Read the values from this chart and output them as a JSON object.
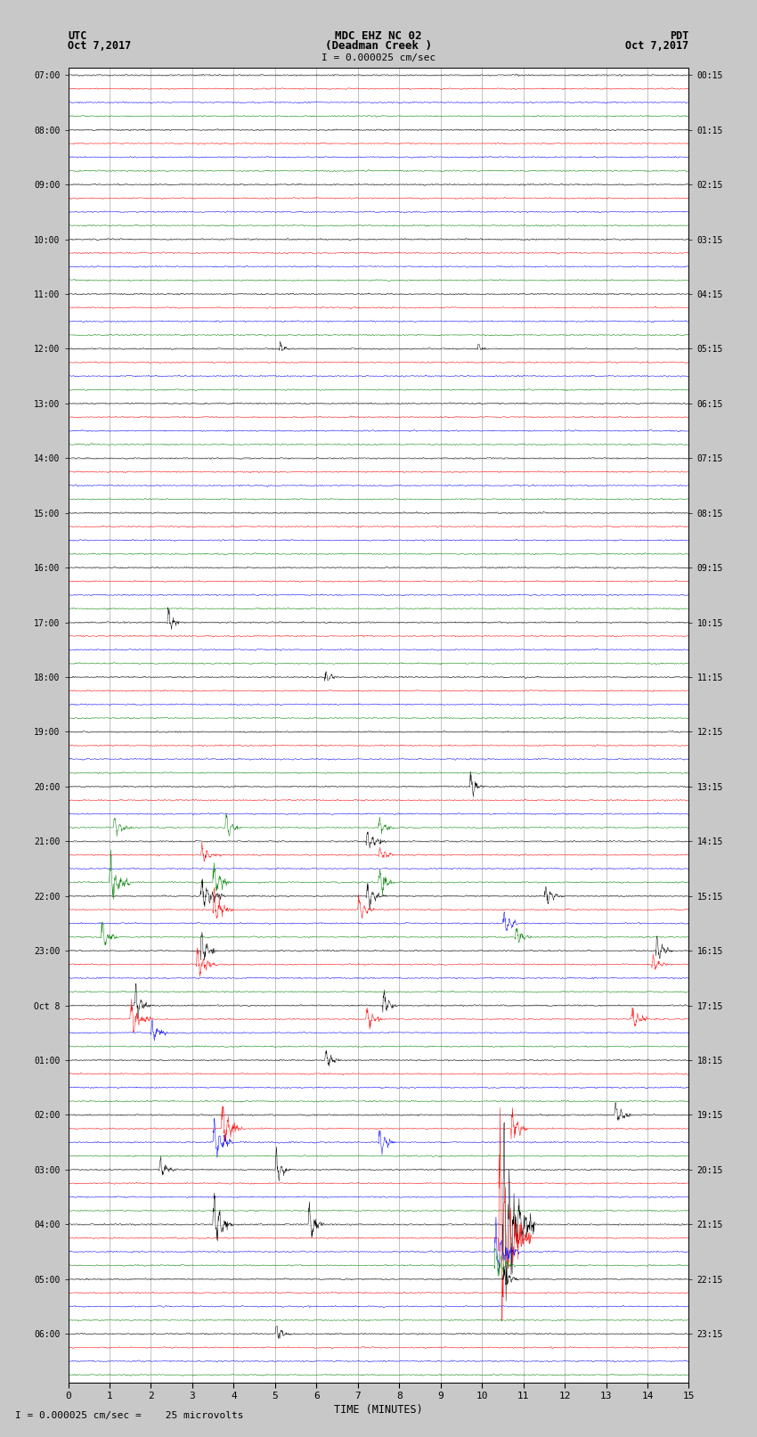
{
  "title_line1": "MDC EHZ NC 02",
  "title_line2": "(Deadman Creek )",
  "title_line3": "I = 0.000025 cm/sec",
  "left_header_line1": "UTC",
  "left_header_line2": "Oct 7,2017",
  "right_header_line1": "PDT",
  "right_header_line2": "Oct 7,2017",
  "xlabel": "TIME (MINUTES)",
  "footer": "I = 0.000025 cm/sec =    25 microvolts",
  "time_minutes": 15,
  "colors": [
    "black",
    "red",
    "blue",
    "green"
  ],
  "background_color": "#c8c8c8",
  "plot_bg": "#ffffff",
  "noise_amplitude": 0.04,
  "num_rows": 96,
  "figwidth": 8.5,
  "figheight": 16.13,
  "utc_labels": [
    "07:00",
    "",
    "",
    "",
    "08:00",
    "",
    "",
    "",
    "09:00",
    "",
    "",
    "",
    "10:00",
    "",
    "",
    "",
    "11:00",
    "",
    "",
    "",
    "12:00",
    "",
    "",
    "",
    "13:00",
    "",
    "",
    "",
    "14:00",
    "",
    "",
    "",
    "15:00",
    "",
    "",
    "",
    "16:00",
    "",
    "",
    "",
    "17:00",
    "",
    "",
    "",
    "18:00",
    "",
    "",
    "",
    "19:00",
    "",
    "",
    "",
    "20:00",
    "",
    "",
    "",
    "21:00",
    "",
    "",
    "",
    "22:00",
    "",
    "",
    "",
    "23:00",
    "",
    "",
    "",
    "Oct 8",
    "",
    "",
    "",
    "01:00",
    "",
    "",
    "",
    "02:00",
    "",
    "",
    "",
    "03:00",
    "",
    "",
    "",
    "04:00",
    "",
    "",
    "",
    "05:00",
    "",
    "",
    "",
    "06:00",
    "",
    "",
    ""
  ],
  "pdt_labels": [
    "00:15",
    "",
    "",
    "",
    "01:15",
    "",
    "",
    "",
    "02:15",
    "",
    "",
    "",
    "03:15",
    "",
    "",
    "",
    "04:15",
    "",
    "",
    "",
    "05:15",
    "",
    "",
    "",
    "06:15",
    "",
    "",
    "",
    "07:15",
    "",
    "",
    "",
    "08:15",
    "",
    "",
    "",
    "09:15",
    "",
    "",
    "",
    "10:15",
    "",
    "",
    "",
    "11:15",
    "",
    "",
    "",
    "12:15",
    "",
    "",
    "",
    "13:15",
    "",
    "",
    "",
    "14:15",
    "",
    "",
    "",
    "15:15",
    "",
    "",
    "",
    "16:15",
    "",
    "",
    "",
    "17:15",
    "",
    "",
    "",
    "18:15",
    "",
    "",
    "",
    "19:15",
    "",
    "",
    "",
    "20:15",
    "",
    "",
    "",
    "21:15",
    "",
    "",
    "",
    "22:15",
    "",
    "",
    "",
    "23:15",
    "",
    "",
    ""
  ],
  "x_ticks": [
    0,
    1,
    2,
    3,
    4,
    5,
    6,
    7,
    8,
    9,
    10,
    11,
    12,
    13,
    14,
    15
  ],
  "special_events": [
    [
      20,
      5.1,
      0.6,
      0.25,
      0
    ],
    [
      20,
      9.9,
      0.5,
      0.2,
      0
    ],
    [
      40,
      2.4,
      1.5,
      0.3,
      0
    ],
    [
      44,
      6.2,
      0.5,
      0.4,
      3
    ],
    [
      52,
      9.7,
      1.0,
      0.35,
      1
    ],
    [
      55,
      1.1,
      0.8,
      0.5,
      2
    ],
    [
      55,
      3.8,
      1.0,
      0.4,
      2
    ],
    [
      55,
      7.5,
      0.7,
      0.4,
      2
    ],
    [
      56,
      7.2,
      0.8,
      0.5,
      3
    ],
    [
      57,
      3.2,
      0.9,
      0.5,
      1
    ],
    [
      57,
      7.5,
      0.7,
      0.4,
      1
    ],
    [
      59,
      1.0,
      1.8,
      0.5,
      3
    ],
    [
      59,
      3.5,
      1.5,
      0.4,
      3
    ],
    [
      59,
      7.5,
      1.3,
      0.4,
      3
    ],
    [
      60,
      3.2,
      1.4,
      0.6,
      1
    ],
    [
      60,
      7.2,
      1.0,
      0.5,
      1
    ],
    [
      60,
      11.5,
      0.8,
      0.5,
      1
    ],
    [
      61,
      3.5,
      1.2,
      0.5,
      2
    ],
    [
      61,
      7.0,
      1.0,
      0.4,
      2
    ],
    [
      62,
      10.5,
      1.0,
      0.4,
      0
    ],
    [
      63,
      0.8,
      1.2,
      0.4,
      1
    ],
    [
      63,
      10.8,
      0.8,
      0.4,
      1
    ],
    [
      64,
      3.2,
      1.5,
      0.4,
      0
    ],
    [
      64,
      14.2,
      1.2,
      0.4,
      0
    ],
    [
      65,
      3.1,
      1.0,
      0.5,
      2
    ],
    [
      65,
      14.1,
      0.8,
      0.4,
      2
    ],
    [
      68,
      1.6,
      1.5,
      0.4,
      0
    ],
    [
      68,
      7.6,
      1.0,
      0.35,
      0
    ],
    [
      69,
      1.5,
      1.5,
      0.5,
      1
    ],
    [
      69,
      7.2,
      1.0,
      0.4,
      1
    ],
    [
      69,
      13.6,
      1.2,
      0.4,
      1
    ],
    [
      70,
      2.0,
      1.0,
      0.4,
      0
    ],
    [
      72,
      6.2,
      0.8,
      0.4,
      2
    ],
    [
      76,
      13.2,
      1.2,
      0.4,
      0
    ],
    [
      77,
      3.7,
      2.0,
      0.5,
      2
    ],
    [
      77,
      10.7,
      1.5,
      0.4,
      2
    ],
    [
      78,
      3.5,
      1.8,
      0.5,
      1
    ],
    [
      78,
      7.5,
      1.2,
      0.4,
      0
    ],
    [
      80,
      2.2,
      1.0,
      0.4,
      3
    ],
    [
      80,
      5.0,
      1.2,
      0.4,
      3
    ],
    [
      84,
      3.5,
      1.8,
      0.5,
      2
    ],
    [
      84,
      5.8,
      1.5,
      0.4,
      3
    ],
    [
      84,
      10.5,
      6.0,
      0.8,
      1
    ],
    [
      85,
      10.4,
      5.0,
      0.8,
      1
    ],
    [
      85,
      10.4,
      3.0,
      0.7,
      2
    ],
    [
      86,
      10.3,
      2.0,
      0.6,
      3
    ],
    [
      87,
      10.3,
      1.5,
      0.5,
      0
    ],
    [
      88,
      10.5,
      1.0,
      0.4,
      1
    ],
    [
      92,
      5.0,
      0.8,
      0.4,
      0
    ]
  ]
}
